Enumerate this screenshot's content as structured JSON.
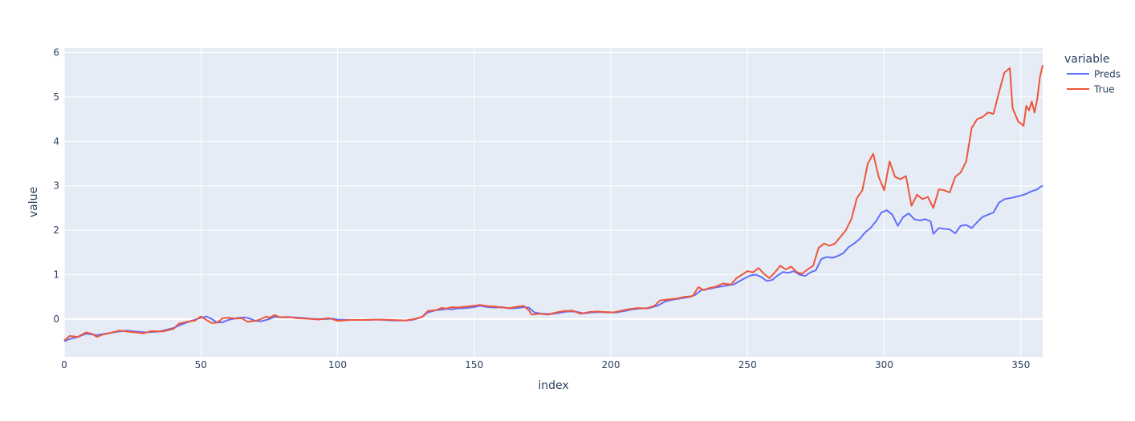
{
  "chart_data": {
    "type": "line",
    "xlabel": "index",
    "ylabel": "value",
    "xlim": [
      0,
      358
    ],
    "ylim": [
      -0.85,
      6.1
    ],
    "xticks": [
      0,
      50,
      100,
      150,
      200,
      250,
      300,
      350
    ],
    "yticks": [
      0,
      1,
      2,
      3,
      4,
      5,
      6
    ],
    "grid": true,
    "legend": {
      "title": "variable",
      "placement": "top-right"
    },
    "series": [
      {
        "name": "Preds",
        "color": "#636efa",
        "points": [
          [
            0,
            -0.5
          ],
          [
            2,
            -0.45
          ],
          [
            5,
            -0.4
          ],
          [
            8,
            -0.33
          ],
          [
            12,
            -0.36
          ],
          [
            16,
            -0.32
          ],
          [
            20,
            -0.28
          ],
          [
            23,
            -0.26
          ],
          [
            26,
            -0.28
          ],
          [
            30,
            -0.3
          ],
          [
            35,
            -0.28
          ],
          [
            40,
            -0.2
          ],
          [
            43,
            -0.12
          ],
          [
            46,
            -0.05
          ],
          [
            50,
            0.03
          ],
          [
            52,
            0.06
          ],
          [
            54,
            0.0
          ],
          [
            56,
            -0.08
          ],
          [
            58,
            -0.07
          ],
          [
            60,
            -0.02
          ],
          [
            63,
            0.02
          ],
          [
            66,
            0.04
          ],
          [
            68,
            0.01
          ],
          [
            70,
            -0.04
          ],
          [
            72,
            -0.05
          ],
          [
            75,
            0.0
          ],
          [
            77,
            0.05
          ],
          [
            80,
            0.04
          ],
          [
            84,
            0.04
          ],
          [
            88,
            0.02
          ],
          [
            92,
            0.0
          ],
          [
            96,
            0.0
          ],
          [
            98,
            0.01
          ],
          [
            100,
            -0.01
          ],
          [
            105,
            -0.02
          ],
          [
            110,
            -0.02
          ],
          [
            115,
            -0.01
          ],
          [
            120,
            -0.03
          ],
          [
            125,
            -0.03
          ],
          [
            128,
            -0.01
          ],
          [
            131,
            0.05
          ],
          [
            133,
            0.15
          ],
          [
            136,
            0.2
          ],
          [
            138,
            0.21
          ],
          [
            140,
            0.23
          ],
          [
            142,
            0.22
          ],
          [
            144,
            0.24
          ],
          [
            147,
            0.25
          ],
          [
            150,
            0.27
          ],
          [
            152,
            0.3
          ],
          [
            155,
            0.27
          ],
          [
            158,
            0.26
          ],
          [
            160,
            0.27
          ],
          [
            163,
            0.24
          ],
          [
            166,
            0.25
          ],
          [
            168,
            0.27
          ],
          [
            170,
            0.26
          ],
          [
            172,
            0.15
          ],
          [
            175,
            0.12
          ],
          [
            178,
            0.11
          ],
          [
            181,
            0.14
          ],
          [
            184,
            0.17
          ],
          [
            187,
            0.17
          ],
          [
            190,
            0.13
          ],
          [
            193,
            0.15
          ],
          [
            196,
            0.16
          ],
          [
            199,
            0.15
          ],
          [
            202,
            0.15
          ],
          [
            205,
            0.18
          ],
          [
            208,
            0.22
          ],
          [
            211,
            0.24
          ],
          [
            214,
            0.25
          ],
          [
            217,
            0.3
          ],
          [
            220,
            0.4
          ],
          [
            223,
            0.44
          ],
          [
            226,
            0.47
          ],
          [
            229,
            0.5
          ],
          [
            231,
            0.55
          ],
          [
            233,
            0.65
          ],
          [
            236,
            0.68
          ],
          [
            239,
            0.72
          ],
          [
            242,
            0.75
          ],
          [
            245,
            0.78
          ],
          [
            247,
            0.85
          ],
          [
            249,
            0.92
          ],
          [
            251,
            0.98
          ],
          [
            253,
            1.0
          ],
          [
            255,
            0.95
          ],
          [
            257,
            0.86
          ],
          [
            259,
            0.88
          ],
          [
            261,
            0.98
          ],
          [
            263,
            1.06
          ],
          [
            265,
            1.04
          ],
          [
            267,
            1.08
          ],
          [
            269,
            1.0
          ],
          [
            271,
            0.97
          ],
          [
            273,
            1.05
          ],
          [
            275,
            1.1
          ],
          [
            277,
            1.35
          ],
          [
            279,
            1.4
          ],
          [
            281,
            1.38
          ],
          [
            283,
            1.42
          ],
          [
            285,
            1.48
          ],
          [
            287,
            1.62
          ],
          [
            289,
            1.7
          ],
          [
            291,
            1.8
          ],
          [
            293,
            1.95
          ],
          [
            295,
            2.05
          ],
          [
            297,
            2.2
          ],
          [
            299,
            2.4
          ],
          [
            301,
            2.45
          ],
          [
            303,
            2.35
          ],
          [
            305,
            2.1
          ],
          [
            307,
            2.3
          ],
          [
            309,
            2.38
          ],
          [
            311,
            2.25
          ],
          [
            313,
            2.22
          ],
          [
            315,
            2.25
          ],
          [
            317,
            2.2
          ],
          [
            318,
            1.92
          ],
          [
            320,
            2.05
          ],
          [
            322,
            2.03
          ],
          [
            324,
            2.02
          ],
          [
            326,
            1.93
          ],
          [
            328,
            2.1
          ],
          [
            330,
            2.12
          ],
          [
            332,
            2.05
          ],
          [
            334,
            2.18
          ],
          [
            336,
            2.3
          ],
          [
            338,
            2.35
          ],
          [
            340,
            2.4
          ],
          [
            342,
            2.62
          ],
          [
            344,
            2.7
          ],
          [
            346,
            2.72
          ],
          [
            348,
            2.75
          ],
          [
            350,
            2.78
          ],
          [
            352,
            2.82
          ],
          [
            354,
            2.88
          ],
          [
            356,
            2.92
          ],
          [
            357,
            2.97
          ],
          [
            358,
            3.0
          ]
        ]
      },
      {
        "name": "True",
        "color": "#ef553b",
        "points": [
          [
            0,
            -0.48
          ],
          [
            2,
            -0.38
          ],
          [
            5,
            -0.4
          ],
          [
            8,
            -0.3
          ],
          [
            10,
            -0.33
          ],
          [
            12,
            -0.4
          ],
          [
            14,
            -0.35
          ],
          [
            17,
            -0.31
          ],
          [
            20,
            -0.26
          ],
          [
            23,
            -0.28
          ],
          [
            26,
            -0.3
          ],
          [
            29,
            -0.32
          ],
          [
            32,
            -0.27
          ],
          [
            36,
            -0.28
          ],
          [
            40,
            -0.22
          ],
          [
            42,
            -0.1
          ],
          [
            45,
            -0.06
          ],
          [
            48,
            -0.03
          ],
          [
            50,
            0.06
          ],
          [
            52,
            -0.02
          ],
          [
            54,
            -0.09
          ],
          [
            56,
            -0.08
          ],
          [
            58,
            0.02
          ],
          [
            60,
            0.03
          ],
          [
            63,
            0.01
          ],
          [
            65,
            0.02
          ],
          [
            67,
            -0.06
          ],
          [
            70,
            -0.04
          ],
          [
            72,
            0.0
          ],
          [
            74,
            0.06
          ],
          [
            75,
            0.03
          ],
          [
            77,
            0.09
          ],
          [
            79,
            0.04
          ],
          [
            82,
            0.05
          ],
          [
            85,
            0.02
          ],
          [
            89,
            0.01
          ],
          [
            93,
            -0.01
          ],
          [
            97,
            0.02
          ],
          [
            100,
            -0.04
          ],
          [
            105,
            -0.02
          ],
          [
            110,
            -0.02
          ],
          [
            115,
            -0.01
          ],
          [
            120,
            -0.02
          ],
          [
            125,
            -0.03
          ],
          [
            128,
            0.0
          ],
          [
            131,
            0.05
          ],
          [
            133,
            0.18
          ],
          [
            136,
            0.2
          ],
          [
            138,
            0.25
          ],
          [
            140,
            0.24
          ],
          [
            142,
            0.27
          ],
          [
            144,
            0.26
          ],
          [
            147,
            0.28
          ],
          [
            150,
            0.3
          ],
          [
            152,
            0.32
          ],
          [
            155,
            0.29
          ],
          [
            158,
            0.28
          ],
          [
            160,
            0.26
          ],
          [
            163,
            0.25
          ],
          [
            166,
            0.28
          ],
          [
            168,
            0.3
          ],
          [
            170,
            0.2
          ],
          [
            171,
            0.1
          ],
          [
            174,
            0.12
          ],
          [
            177,
            0.1
          ],
          [
            180,
            0.15
          ],
          [
            183,
            0.18
          ],
          [
            186,
            0.19
          ],
          [
            189,
            0.12
          ],
          [
            192,
            0.16
          ],
          [
            195,
            0.17
          ],
          [
            198,
            0.16
          ],
          [
            201,
            0.15
          ],
          [
            204,
            0.19
          ],
          [
            207,
            0.23
          ],
          [
            210,
            0.25
          ],
          [
            213,
            0.24
          ],
          [
            216,
            0.3
          ],
          [
            218,
            0.42
          ],
          [
            221,
            0.44
          ],
          [
            224,
            0.46
          ],
          [
            227,
            0.5
          ],
          [
            230,
            0.52
          ],
          [
            232,
            0.72
          ],
          [
            234,
            0.65
          ],
          [
            236,
            0.7
          ],
          [
            238,
            0.72
          ],
          [
            241,
            0.8
          ],
          [
            244,
            0.78
          ],
          [
            246,
            0.92
          ],
          [
            248,
            1.0
          ],
          [
            250,
            1.08
          ],
          [
            252,
            1.05
          ],
          [
            254,
            1.15
          ],
          [
            256,
            1.02
          ],
          [
            258,
            0.92
          ],
          [
            260,
            1.05
          ],
          [
            262,
            1.2
          ],
          [
            264,
            1.12
          ],
          [
            266,
            1.18
          ],
          [
            268,
            1.06
          ],
          [
            270,
            1.02
          ],
          [
            272,
            1.12
          ],
          [
            274,
            1.2
          ],
          [
            276,
            1.6
          ],
          [
            278,
            1.7
          ],
          [
            280,
            1.65
          ],
          [
            282,
            1.7
          ],
          [
            284,
            1.85
          ],
          [
            286,
            2.0
          ],
          [
            288,
            2.25
          ],
          [
            290,
            2.72
          ],
          [
            292,
            2.9
          ],
          [
            294,
            3.5
          ],
          [
            296,
            3.72
          ],
          [
            298,
            3.2
          ],
          [
            300,
            2.9
          ],
          [
            302,
            3.55
          ],
          [
            304,
            3.2
          ],
          [
            306,
            3.15
          ],
          [
            308,
            3.22
          ],
          [
            310,
            2.55
          ],
          [
            312,
            2.8
          ],
          [
            314,
            2.7
          ],
          [
            316,
            2.75
          ],
          [
            318,
            2.5
          ],
          [
            320,
            2.92
          ],
          [
            322,
            2.9
          ],
          [
            324,
            2.85
          ],
          [
            326,
            3.2
          ],
          [
            328,
            3.3
          ],
          [
            330,
            3.55
          ],
          [
            332,
            4.3
          ],
          [
            334,
            4.5
          ],
          [
            336,
            4.55
          ],
          [
            338,
            4.65
          ],
          [
            340,
            4.62
          ],
          [
            342,
            5.1
          ],
          [
            344,
            5.55
          ],
          [
            346,
            5.65
          ],
          [
            347,
            4.75
          ],
          [
            349,
            4.45
          ],
          [
            351,
            4.35
          ],
          [
            352,
            4.8
          ],
          [
            353,
            4.7
          ],
          [
            354,
            4.9
          ],
          [
            355,
            4.65
          ],
          [
            356,
            4.95
          ],
          [
            357,
            5.45
          ],
          [
            358,
            5.72
          ]
        ]
      }
    ]
  }
}
